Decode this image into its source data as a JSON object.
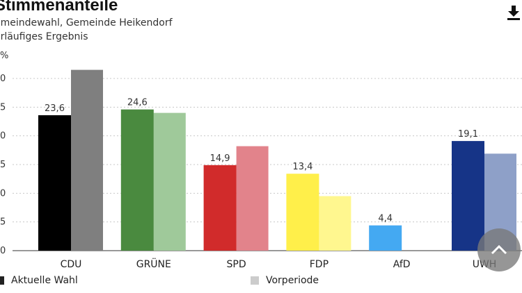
{
  "header": {
    "title": "Stimmenanteile",
    "subtitle1": "emeindewahl, Gemeinde Heikendorf",
    "subtitle2": "orläufiges Ergebnis"
  },
  "icons": {
    "download": "download-icon",
    "scroll_top": "chevron-up-icon"
  },
  "legend": {
    "current": {
      "label": "Aktuelle Wahl",
      "color": "#222222"
    },
    "previous": {
      "label": "Vorperiode",
      "color": "#cccccc"
    }
  },
  "chart_data": {
    "type": "bar",
    "ylabel": "%",
    "ylim": [
      0,
      30
    ],
    "yticks": [
      "0",
      "5",
      "0",
      "5",
      "0",
      "5",
      "0"
    ],
    "grid": true,
    "legend_position": "bottom",
    "categories": [
      "CDU",
      "GRÜNE",
      "SPD",
      "FDP",
      "AfD",
      "UWH"
    ],
    "series": [
      {
        "name": "Aktuelle Wahl",
        "values": [
          23.6,
          24.6,
          14.9,
          13.4,
          4.4,
          19.1
        ],
        "labels": [
          "23,6",
          "24,6",
          "14,9",
          "13,4",
          "4,4",
          "19,1"
        ],
        "colors": [
          "#000000",
          "#4a8a3f",
          "#d12b2b",
          "#ffef4a",
          "#44a9f2",
          "#163487"
        ]
      },
      {
        "name": "Vorperiode",
        "values": [
          31.5,
          24.0,
          18.2,
          9.5,
          0,
          16.9
        ],
        "colors": [
          "#7f7f7f",
          "#9fc99a",
          "#e2838b",
          "#fff78f",
          "#cccccc",
          "#8ea0c8"
        ]
      }
    ]
  }
}
